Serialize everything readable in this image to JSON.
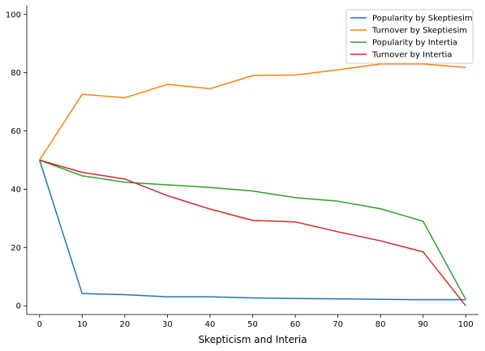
{
  "chart_data": {
    "type": "line",
    "title": "",
    "xlabel": "Skepticism and Interia",
    "ylabel": "",
    "xlim": [
      -3,
      103
    ],
    "ylim": [
      -3,
      103
    ],
    "x_ticks": [
      0,
      10,
      20,
      30,
      40,
      50,
      60,
      70,
      80,
      90,
      100
    ],
    "y_ticks": [
      0,
      20,
      40,
      60,
      80,
      100
    ],
    "grid": false,
    "legend_position": "top-right",
    "x": [
      0,
      10,
      20,
      30,
      40,
      50,
      60,
      70,
      80,
      90,
      100
    ],
    "series": [
      {
        "name": "Popularity by Skeptiesim",
        "color": "#1f77b4",
        "values": [
          50,
          4.2,
          3.8,
          3.1,
          3.1,
          2.7,
          2.5,
          2.4,
          2.2,
          2.1,
          2.1
        ]
      },
      {
        "name": "Turnover by Skeptiesim",
        "color": "#ff7f0e",
        "values": [
          50,
          72.6,
          71.4,
          76.0,
          74.5,
          79.0,
          79.2,
          81.0,
          83.0,
          83.0,
          81.8
        ]
      },
      {
        "name": "Popularity by Intertia",
        "color": "#2ca02c",
        "values": [
          50,
          44.6,
          42.4,
          41.5,
          40.6,
          39.4,
          37.1,
          35.9,
          33.3,
          29.0,
          2.2
        ]
      },
      {
        "name": "Turnover by Intertia",
        "color": "#d62728",
        "values": [
          50,
          45.8,
          43.5,
          37.8,
          33.2,
          29.3,
          28.8,
          25.4,
          22.3,
          18.5,
          0.0
        ]
      }
    ]
  }
}
